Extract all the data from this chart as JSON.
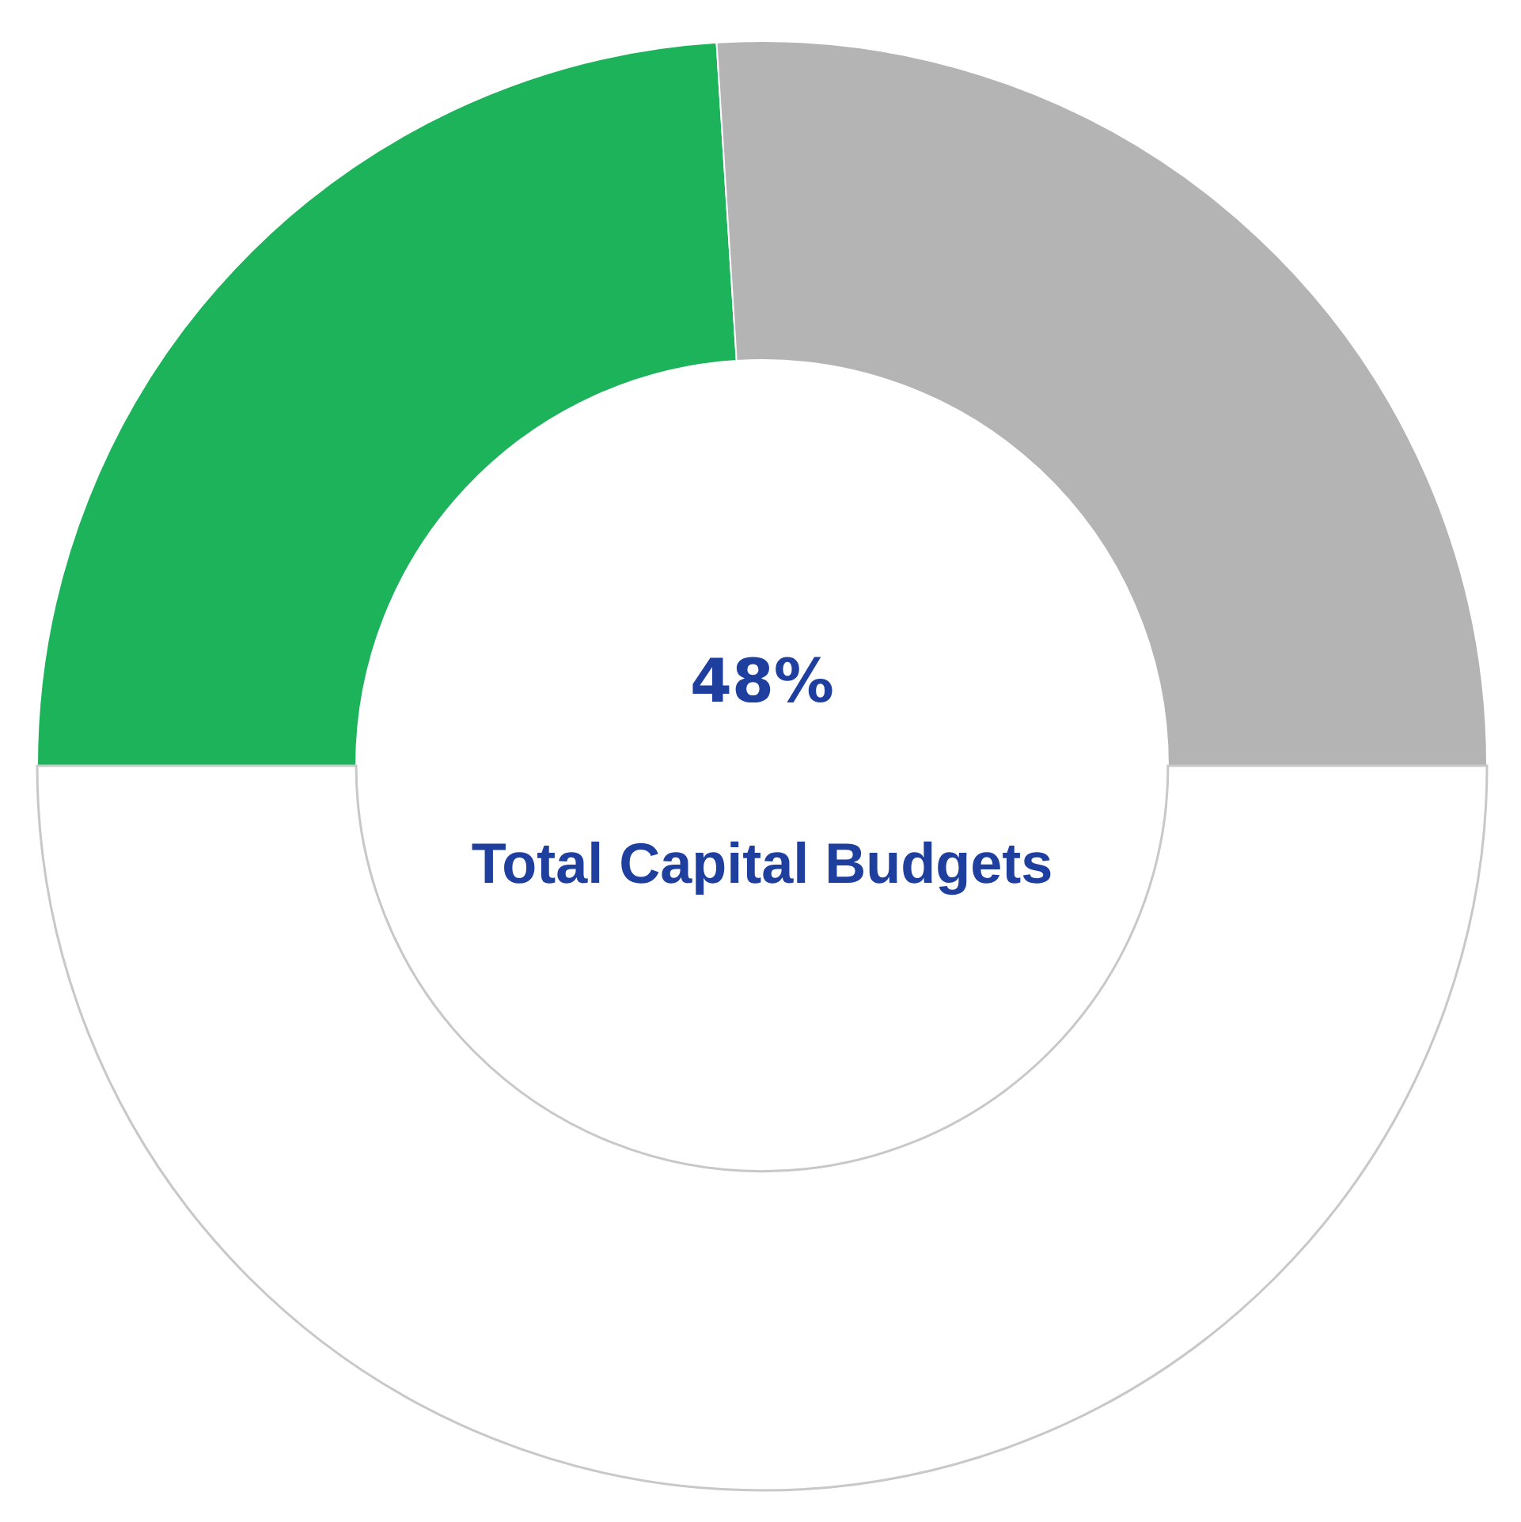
{
  "chart_data": {
    "type": "donut",
    "title": "Total Capital Budgets",
    "categories": [
      null,
      null
    ],
    "values": [
      48,
      52
    ],
    "colors": [
      "#1db35a",
      "#b4b4b4"
    ],
    "annotations": [
      "48%"
    ],
    "legend": false
  }
}
